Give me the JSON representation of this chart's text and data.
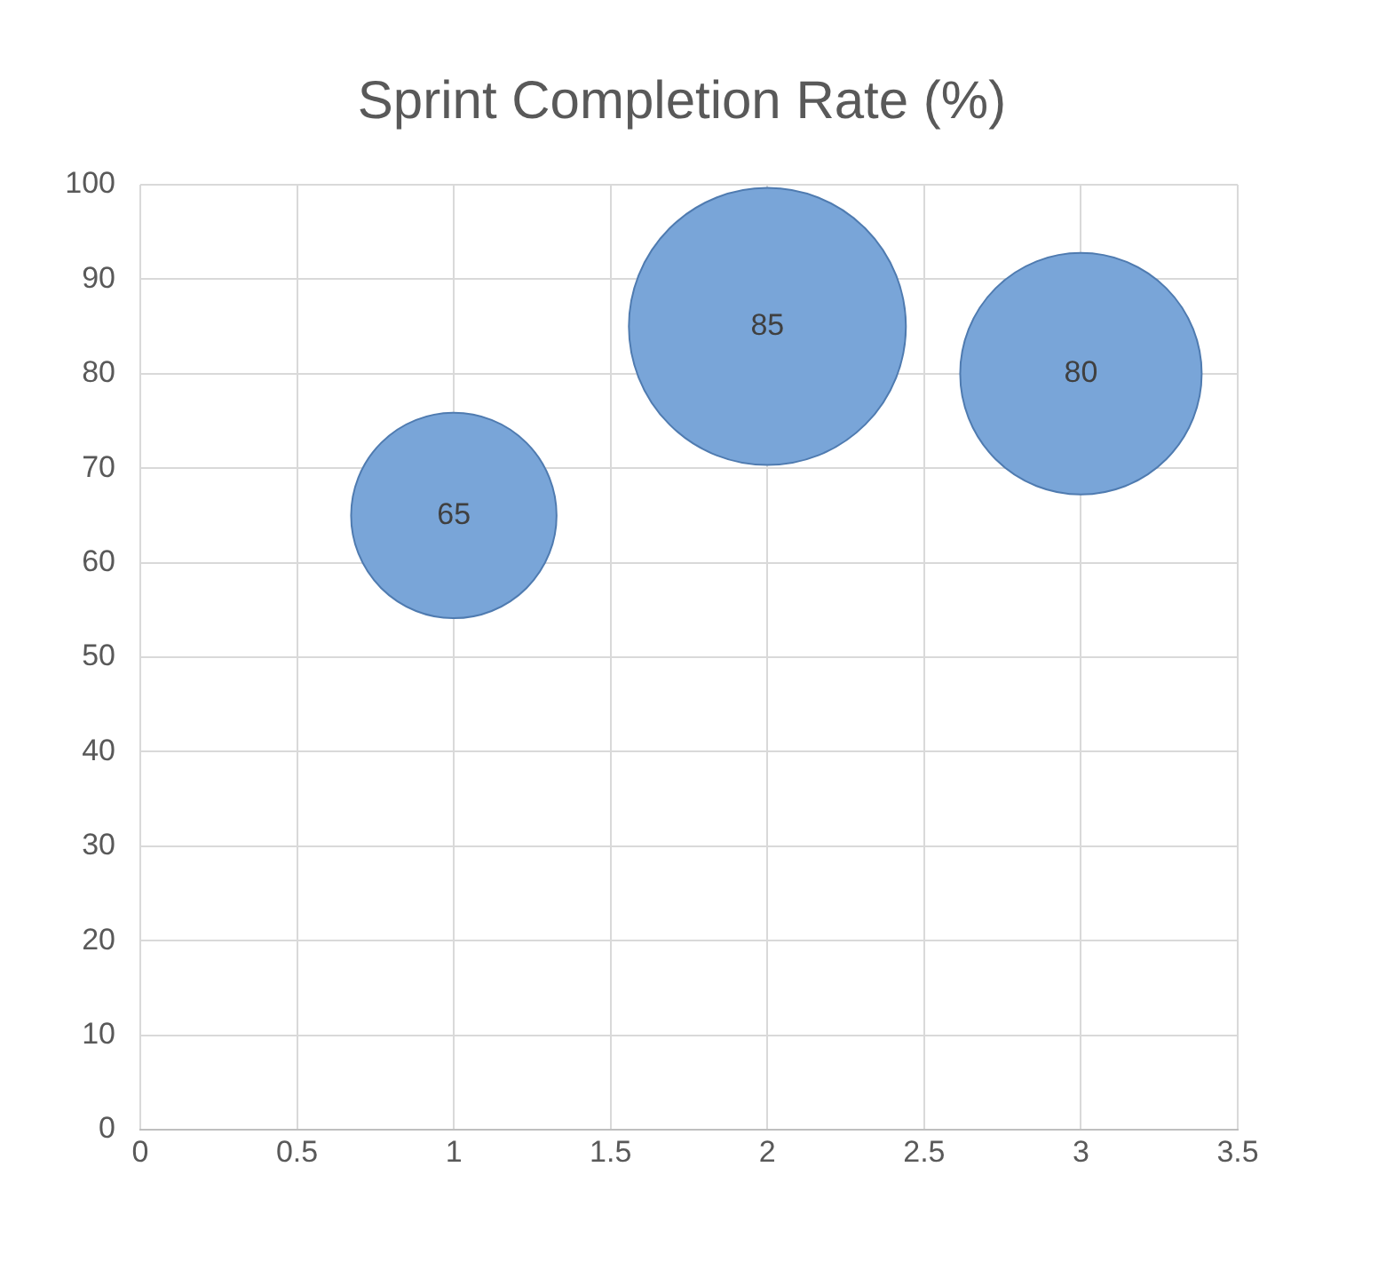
{
  "chart_data": {
    "type": "bubble",
    "title": "Sprint Completion Rate (%)",
    "x": [
      1,
      2,
      3
    ],
    "values": [
      65,
      85,
      80
    ],
    "sizes": [
      0.55,
      1,
      0.76
    ],
    "color": "#79a5d8",
    "xlim": [
      0,
      3.5
    ],
    "xticks": [
      0,
      0.5,
      1,
      1.5,
      2,
      2.5,
      3,
      3.5
    ],
    "ylim": [
      0,
      100
    ],
    "yticks": [
      0,
      10,
      20,
      30,
      40,
      50,
      60,
      70,
      80,
      90,
      100
    ],
    "grid": true,
    "legend": false,
    "data_labels": true
  }
}
